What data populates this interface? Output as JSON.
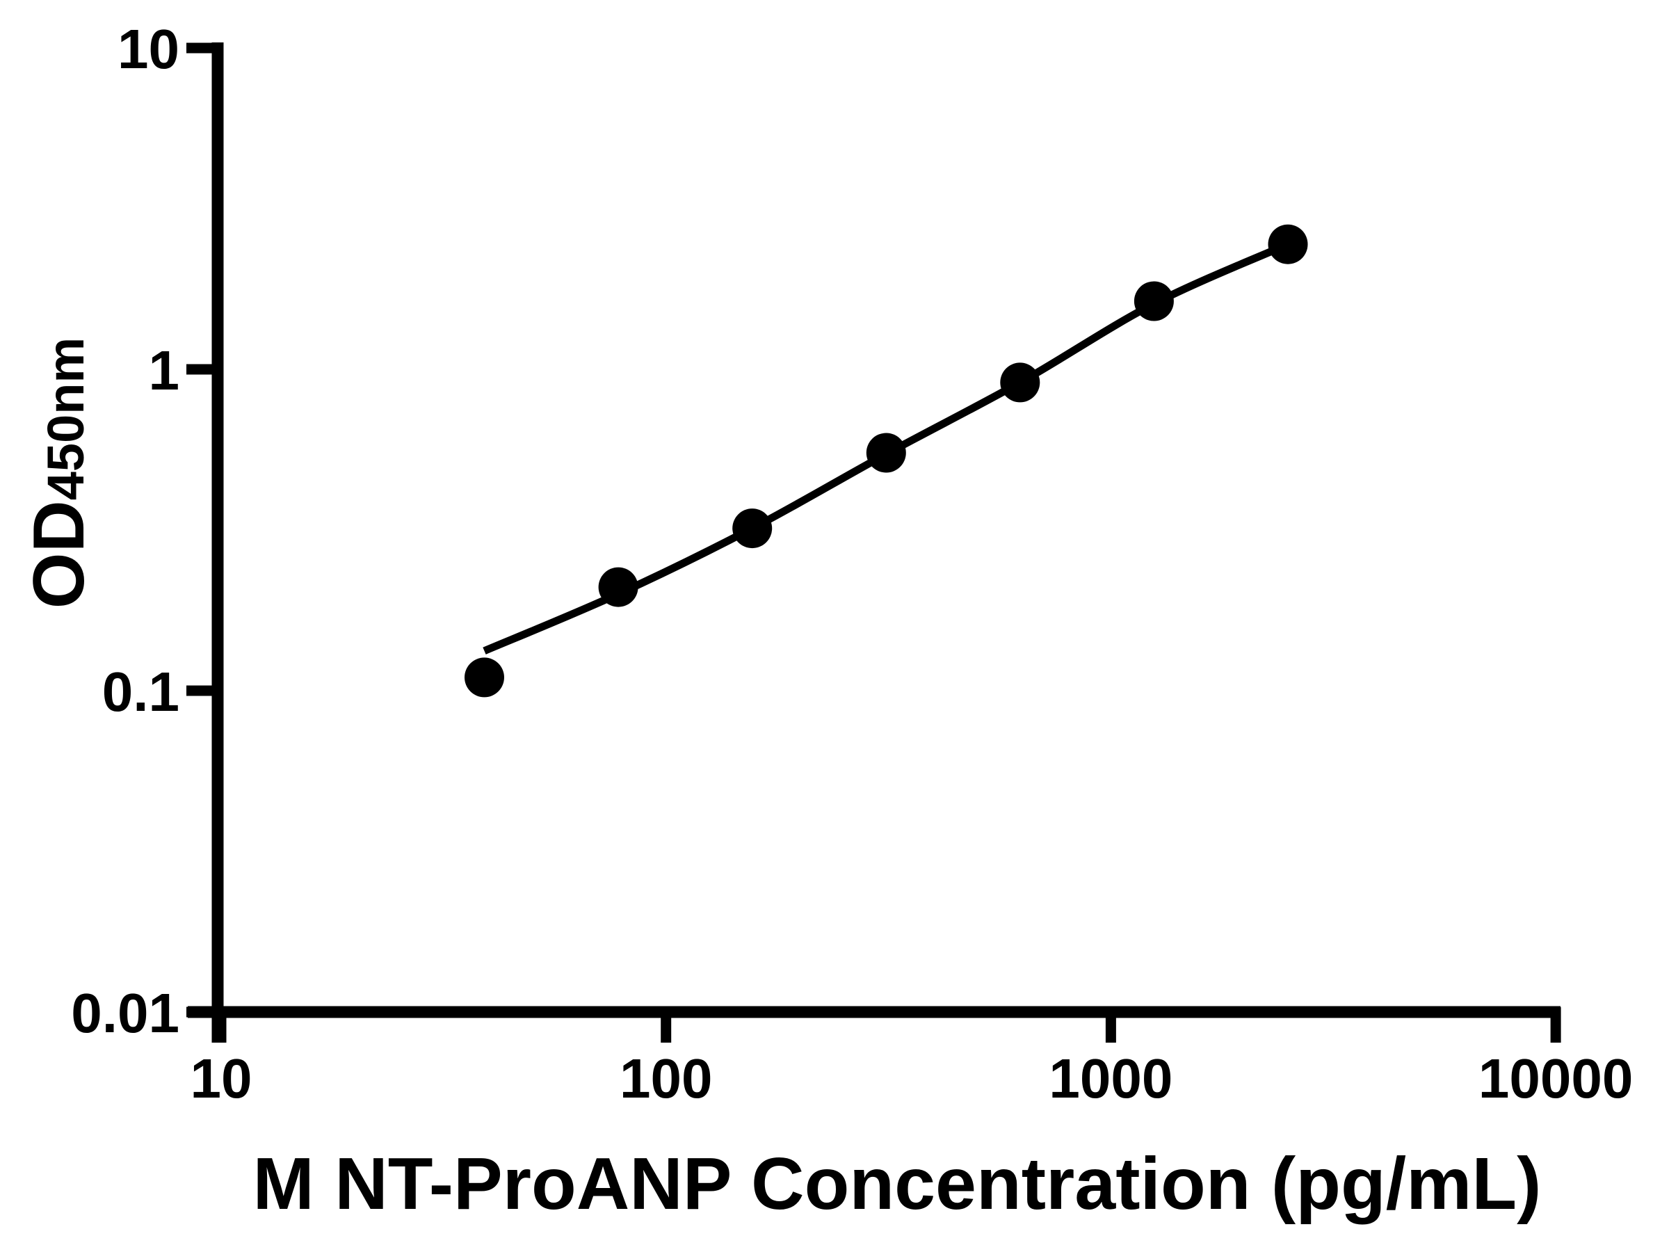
{
  "figure": {
    "background_color": "#ffffff",
    "foreground_color": "#000000"
  },
  "chart_data": {
    "type": "scatter",
    "title": "",
    "xlabel": "M NT-ProANP Concentration (pg/mL)",
    "ylabel": "OD",
    "ylabel_subscript": "450nm",
    "x_scale": "log",
    "y_scale": "log",
    "xlim": [
      10,
      10000
    ],
    "ylim": [
      0.01,
      10
    ],
    "x_tick_values": [
      10,
      100,
      1000,
      10000
    ],
    "x_tick_labels": [
      "10",
      "100",
      "1000",
      "10000"
    ],
    "y_tick_values": [
      10,
      1,
      0.1,
      0.01
    ],
    "y_tick_labels": [
      "10",
      "1",
      "0.1",
      "0.01"
    ],
    "grid": false,
    "legend": false,
    "marker_color": "#000000",
    "line_color": "#000000",
    "points": [
      {
        "x": 39.06,
        "y": 0.11
      },
      {
        "x": 78.13,
        "y": 0.21
      },
      {
        "x": 156.25,
        "y": 0.32
      },
      {
        "x": 312.5,
        "y": 0.55
      },
      {
        "x": 625,
        "y": 0.91
      },
      {
        "x": 1250,
        "y": 1.63
      },
      {
        "x": 2500,
        "y": 2.45
      }
    ],
    "fit_curve": [
      {
        "x": 39.06,
        "y": 0.133
      },
      {
        "x": 78.13,
        "y": 0.2
      },
      {
        "x": 156.25,
        "y": 0.32
      },
      {
        "x": 312.5,
        "y": 0.545
      },
      {
        "x": 625,
        "y": 0.91
      },
      {
        "x": 1250,
        "y": 1.6
      },
      {
        "x": 2500,
        "y": 2.45
      }
    ]
  }
}
